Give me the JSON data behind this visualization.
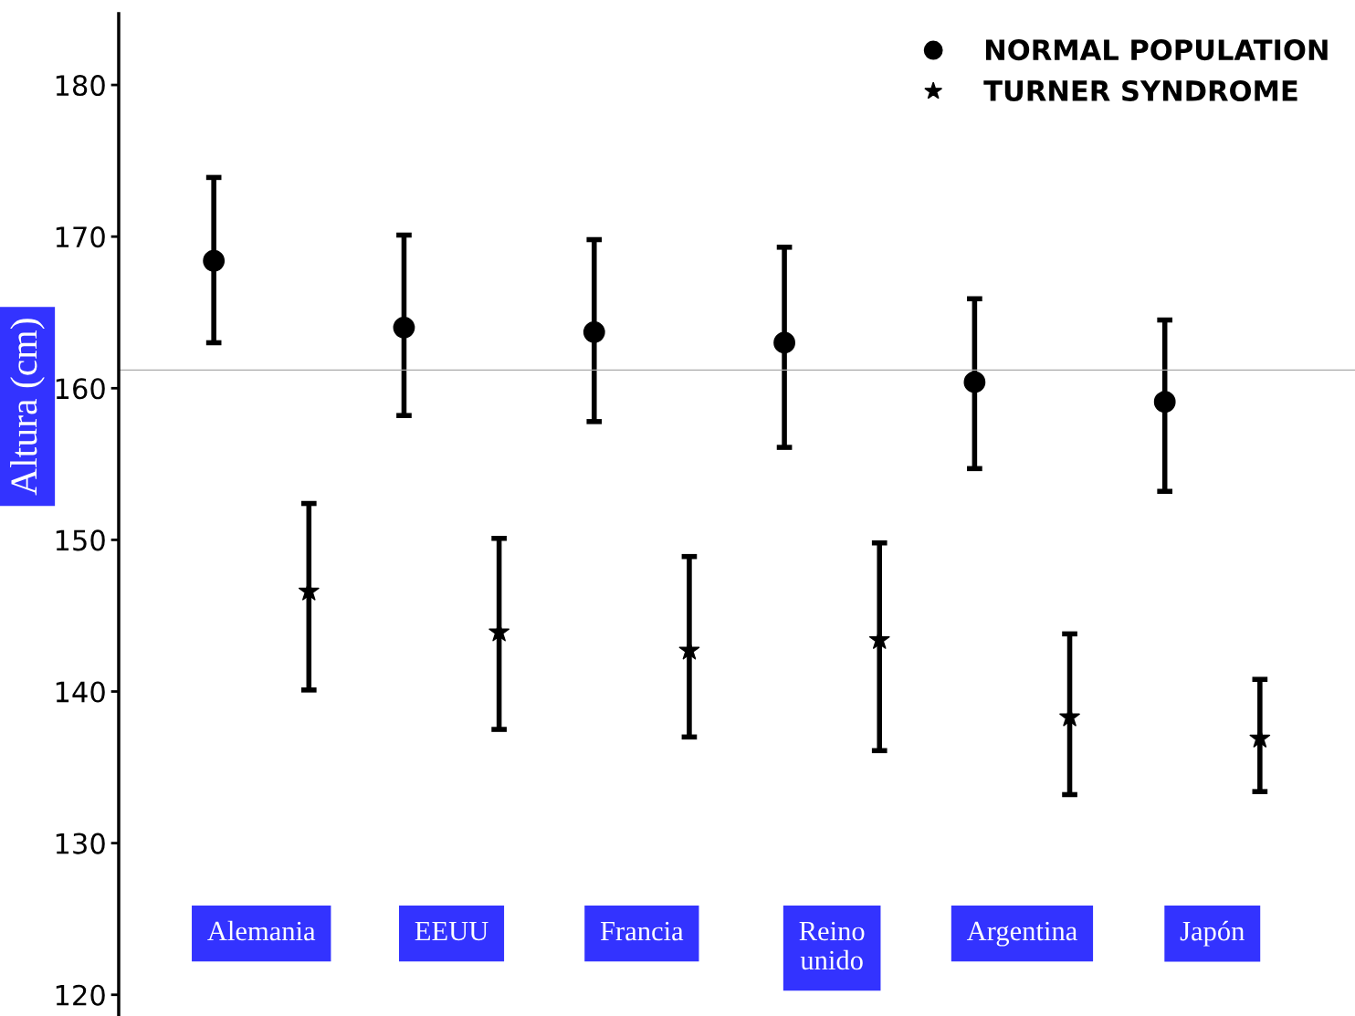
{
  "chart_data": {
    "type": "scatter",
    "ylabel": "Altura (cm)",
    "categories": [
      "Alemania",
      "EEUU",
      "Francia",
      "Reino\nunido",
      "Argentina",
      "Japón"
    ],
    "series": [
      {
        "name": "NORMAL POPULATION",
        "color": "#000000",
        "marker": "circle",
        "values": [
          168.4,
          164.0,
          163.7,
          163.0,
          160.4,
          159.1
        ],
        "errors": [
          [
            163.0,
            173.9
          ],
          [
            158.2,
            170.1
          ],
          [
            157.8,
            169.8
          ],
          [
            156.1,
            169.3
          ],
          [
            154.7,
            165.9
          ],
          [
            153.2,
            164.5
          ]
        ]
      },
      {
        "name": "TURNER SYNDROME",
        "color": "#000000",
        "marker": "star",
        "values": [
          146.6,
          143.9,
          142.7,
          143.4,
          138.3,
          136.9
        ],
        "errors": [
          [
            140.1,
            152.4
          ],
          [
            137.5,
            150.1
          ],
          [
            137.0,
            148.9
          ],
          [
            136.1,
            149.8
          ],
          [
            133.2,
            143.8
          ],
          [
            133.4,
            140.8
          ]
        ]
      }
    ],
    "ylim": [
      118.6,
      184.7
    ],
    "yticks": [
      120,
      130,
      140,
      150,
      160,
      170,
      180
    ],
    "ref_lines": [
      {
        "axis": "y",
        "value": 161.2,
        "color": "#aaaaaa"
      }
    ],
    "grid": false,
    "legend": "top right"
  }
}
